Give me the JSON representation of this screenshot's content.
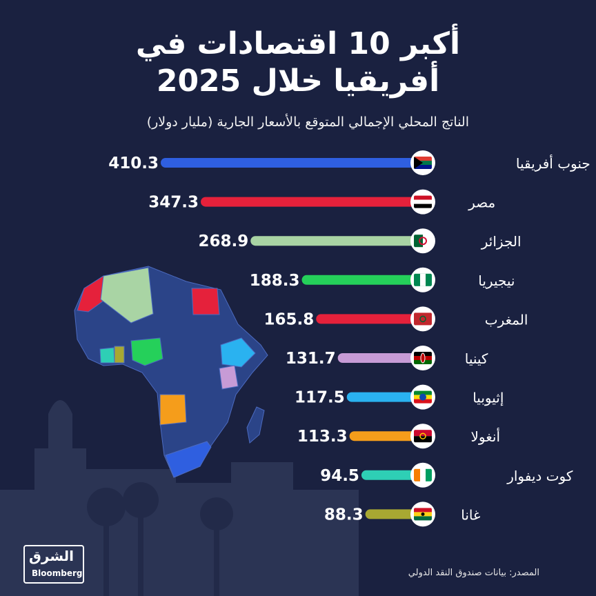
{
  "header": {
    "title_line1": "أكبر 10 اقتصادات في",
    "title_line2": "أفريقيا خلال 2025",
    "subtitle": "الناتج المحلي الإجمالي المتوقع بالأسعار الجارية (مليار دولار)"
  },
  "chart_data": {
    "type": "bar",
    "orientation": "horizontal",
    "title": "أكبر 10 اقتصادات في أفريقيا خلال 2025",
    "subtitle": "الناتج المحلي الإجمالي المتوقع بالأسعار الجارية (مليار دولار)",
    "categories": [
      "جنوب أفريقيا",
      "مصر",
      "الجزائر",
      "نيجيريا",
      "المغرب",
      "كينيا",
      "إثيوبيا",
      "أنغولا",
      "كوت ديفوار",
      "غانا"
    ],
    "values": [
      410.3,
      347.3,
      268.9,
      188.3,
      165.8,
      131.7,
      117.5,
      113.3,
      94.5,
      88.3
    ],
    "value_labels": [
      "410.3",
      "347.3",
      "268.9",
      "188.3",
      "165.8",
      "131.7",
      "117.5",
      "113.3",
      "94.5",
      "88.3"
    ],
    "bar_colors": [
      "#2f5fe0",
      "#e5213b",
      "#a9d4a4",
      "#25d05a",
      "#e5213b",
      "#c79bd6",
      "#2ab2f0",
      "#f59d1b",
      "#2ecfb5",
      "#a8a832"
    ],
    "flags": [
      "south-africa-flag",
      "egypt-flag",
      "algeria-flag",
      "nigeria-flag",
      "morocco-flag",
      "kenya-flag",
      "ethiopia-flag",
      "angola-flag",
      "cote-divoire-flag",
      "ghana-flag"
    ],
    "grid": false
  },
  "footer": {
    "source": "المصدر: بيانات صندوق النقد الدولي",
    "logo_ar": "الشرق",
    "logo_en": "Bloomberg"
  },
  "colors": {
    "background": "#1a2140",
    "map_base": "#2b4488"
  }
}
